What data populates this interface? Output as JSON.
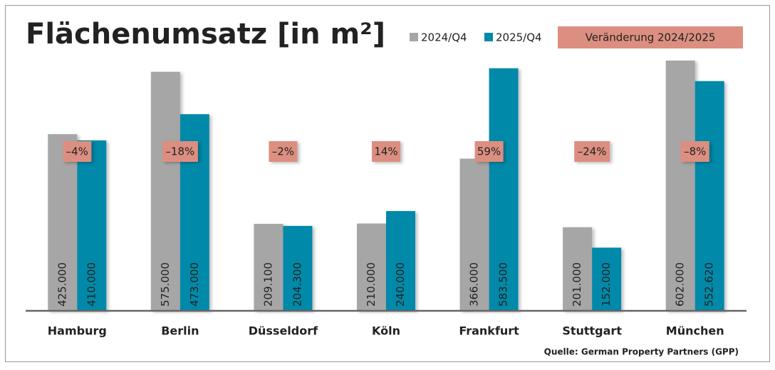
{
  "chart_data": {
    "type": "bar",
    "title": "Flächenumsatz [in m²]",
    "categories": [
      "Hamburg",
      "Berlin",
      "Düsseldorf",
      "Köln",
      "Frankfurt",
      "Stuttgart",
      "München"
    ],
    "series": [
      {
        "name": "2024/Q4",
        "color": "#a6a6a6",
        "values": [
          425000,
          575000,
          209100,
          210000,
          366000,
          201000,
          602000
        ],
        "value_labels": [
          "425.000",
          "575.000",
          "209.100",
          "210.000",
          "366.000",
          "201.000",
          "602.000"
        ]
      },
      {
        "name": "2025/Q4",
        "color": "#0089a9",
        "values": [
          410000,
          473000,
          204300,
          240000,
          583500,
          152000,
          552620
        ],
        "value_labels": [
          "410.000",
          "473.000",
          "204.300",
          "240.000",
          "583.500",
          "152.000",
          "552.620"
        ]
      }
    ],
    "change": {
      "name": "Veränderung 2024/2025",
      "color": "#dc8f80",
      "values": [
        -4,
        -18,
        -2,
        14,
        59,
        -24,
        -8
      ],
      "value_labels": [
        "–4%",
        "–18%",
        "–2%",
        "14%",
        "59%",
        "–24%",
        "–8%"
      ]
    },
    "ylim": [
      0,
      650000
    ],
    "source": "Quelle: German Property Partners (GPP)"
  }
}
